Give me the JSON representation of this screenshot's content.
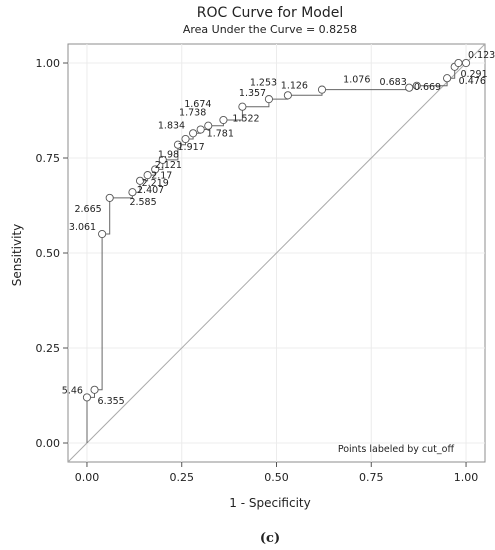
{
  "chart_data": {
    "type": "line",
    "title": "ROC Curve for Model",
    "subtitle": "Area Under the Curve = 0.8258",
    "xlabel": "1 - Specificity",
    "ylabel": "Sensitivity",
    "xlim": [
      -0.05,
      1.05
    ],
    "ylim": [
      -0.05,
      1.05
    ],
    "x_ticks": [
      "0.00",
      "0.25",
      "0.50",
      "0.75",
      "1.00"
    ],
    "y_ticks": [
      "0.00",
      "0.25",
      "0.50",
      "0.75",
      "1.00"
    ],
    "x_tick_values": [
      0,
      0.25,
      0.5,
      0.75,
      1.0
    ],
    "y_tick_values": [
      0,
      0.25,
      0.5,
      0.75,
      1.0
    ],
    "grid": true,
    "reference_line": [
      [
        0,
        0
      ],
      [
        1,
        1
      ]
    ],
    "note": "Points labeled by cut_off",
    "caption": "(c)",
    "roc_curve": [
      [
        0,
        0
      ],
      [
        0,
        0.12
      ],
      [
        0.02,
        0.12
      ],
      [
        0.02,
        0.14
      ],
      [
        0.04,
        0.14
      ],
      [
        0.04,
        0.55
      ],
      [
        0.06,
        0.55
      ],
      [
        0.06,
        0.645
      ],
      [
        0.12,
        0.645
      ],
      [
        0.12,
        0.66
      ],
      [
        0.14,
        0.66
      ],
      [
        0.14,
        0.69
      ],
      [
        0.16,
        0.69
      ],
      [
        0.16,
        0.705
      ],
      [
        0.18,
        0.705
      ],
      [
        0.18,
        0.72
      ],
      [
        0.2,
        0.72
      ],
      [
        0.2,
        0.745
      ],
      [
        0.24,
        0.745
      ],
      [
        0.24,
        0.785
      ],
      [
        0.26,
        0.785
      ],
      [
        0.26,
        0.8
      ],
      [
        0.28,
        0.8
      ],
      [
        0.28,
        0.815
      ],
      [
        0.3,
        0.815
      ],
      [
        0.3,
        0.825
      ],
      [
        0.32,
        0.825
      ],
      [
        0.32,
        0.835
      ],
      [
        0.36,
        0.835
      ],
      [
        0.36,
        0.85
      ],
      [
        0.41,
        0.85
      ],
      [
        0.41,
        0.885
      ],
      [
        0.48,
        0.885
      ],
      [
        0.48,
        0.905
      ],
      [
        0.53,
        0.905
      ],
      [
        0.53,
        0.915
      ],
      [
        0.62,
        0.915
      ],
      [
        0.62,
        0.93
      ],
      [
        0.85,
        0.93
      ],
      [
        0.85,
        0.94
      ],
      [
        0.95,
        0.94
      ],
      [
        0.95,
        0.96
      ],
      [
        0.97,
        0.96
      ],
      [
        0.97,
        0.99
      ],
      [
        0.98,
        0.99
      ],
      [
        0.98,
        1.0
      ],
      [
        1.0,
        1.0
      ]
    ],
    "points": [
      {
        "x": 0.0,
        "y": 0.12,
        "label": "5.46"
      },
      {
        "x": 0.02,
        "y": 0.14,
        "label": "6.355"
      },
      {
        "x": 0.04,
        "y": 0.55,
        "label": "3.061"
      },
      {
        "x": 0.06,
        "y": 0.645,
        "label": "2.665"
      },
      {
        "x": 0.12,
        "y": 0.66,
        "label": "2.585"
      },
      {
        "x": 0.14,
        "y": 0.69,
        "label": "2.407"
      },
      {
        "x": 0.16,
        "y": 0.705,
        "label": "2.219"
      },
      {
        "x": 0.18,
        "y": 0.72,
        "label": "2.17"
      },
      {
        "x": 0.2,
        "y": 0.745,
        "label": "2.121"
      },
      {
        "x": 0.24,
        "y": 0.785,
        "label": "1.98"
      },
      {
        "x": 0.26,
        "y": 0.8,
        "label": "1.917"
      },
      {
        "x": 0.28,
        "y": 0.815,
        "label": "1.834"
      },
      {
        "x": 0.3,
        "y": 0.825,
        "label": "1.781"
      },
      {
        "x": 0.32,
        "y": 0.835,
        "label": "1.738"
      },
      {
        "x": 0.36,
        "y": 0.85,
        "label": "1.674"
      },
      {
        "x": 0.41,
        "y": 0.885,
        "label": "1.522"
      },
      {
        "x": 0.48,
        "y": 0.905,
        "label": "1.357"
      },
      {
        "x": 0.53,
        "y": 0.915,
        "label": "1.253"
      },
      {
        "x": 0.62,
        "y": 0.93,
        "label": "1.126"
      },
      {
        "x": 0.85,
        "y": 0.935,
        "label": "1.076"
      },
      {
        "x": 0.87,
        "y": 0.94,
        "label": "0.683"
      },
      {
        "x": 0.95,
        "y": 0.96,
        "label": "0.669"
      },
      {
        "x": 0.97,
        "y": 0.99,
        "label": "0.476"
      },
      {
        "x": 0.98,
        "y": 1.0,
        "label": "0.291"
      },
      {
        "x": 1.0,
        "y": 1.0,
        "label": "0.123"
      }
    ]
  }
}
